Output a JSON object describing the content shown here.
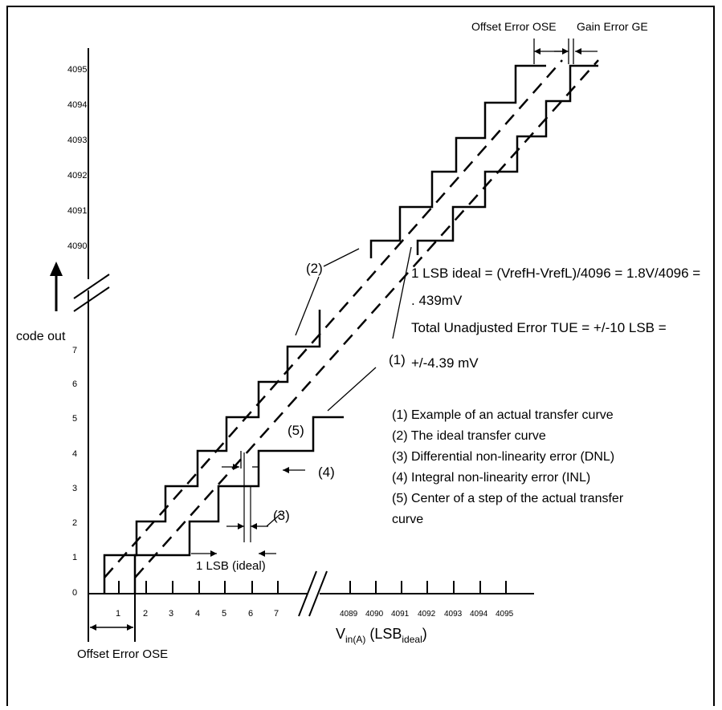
{
  "top_labels": {
    "offset_error": "Offset Error OSE",
    "gain_error": "Gain Error GE"
  },
  "y_ticks_high": [
    "4095",
    "4094",
    "4093",
    "4092",
    "4091",
    "4090"
  ],
  "y_ticks_low": [
    "7",
    "6",
    "5",
    "4",
    "3",
    "2",
    "1",
    "0"
  ],
  "y_axis_label": "code out",
  "x_ticks_low": [
    "1",
    "2",
    "3",
    "4",
    "5",
    "6",
    "7"
  ],
  "x_ticks_high": [
    "4089",
    "4090",
    "4091",
    "4092",
    "4093",
    "4094",
    "4095"
  ],
  "x_axis_label": {
    "main": "V",
    "sub": "in(A)",
    "paren_open": " (LSB",
    "sub2": "ideal",
    "paren_close": ")"
  },
  "bottom_offset_label": "Offset Error OSE",
  "callouts": {
    "c1": "(1)",
    "c2": "(2)",
    "c3": "(3)",
    "c4": "(4)",
    "c5": "(5)",
    "lsb_ideal": "1 LSB (ideal)"
  },
  "notes": [
    "1 LSB ideal = (VrefH-VrefL)/4096 = 1.8V/4096 =",
    ". 439mV",
    "Total Unadjusted Error TUE = +/-10 LSB =",
    "+/-4.39 mV"
  ],
  "legend": [
    "(1) Example of an actual transfer curve",
    "(2) The ideal transfer curve",
    "(3) Differential non-linearity error (DNL)",
    "(4) Integral non-linearity error (INL)",
    "(5) Center of a step of the actual transfer",
    "curve"
  ]
}
